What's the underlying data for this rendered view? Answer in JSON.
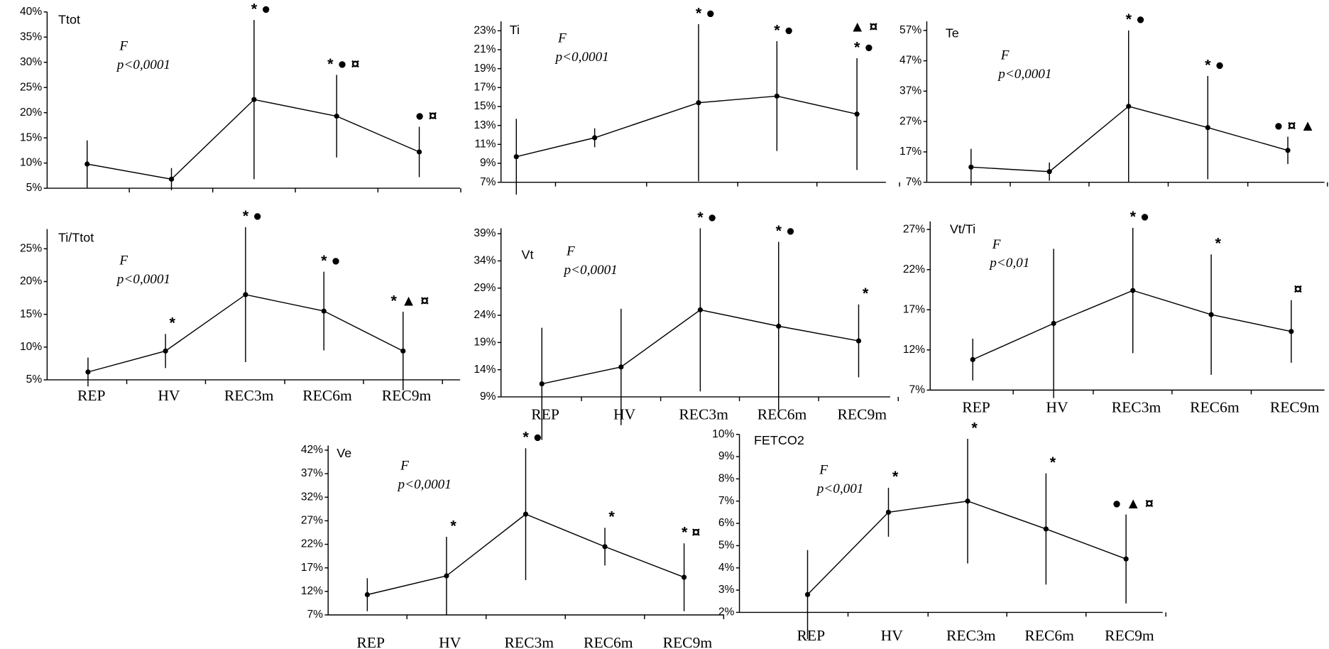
{
  "chart_data": [
    {
      "type": "line",
      "title": "Ttot",
      "stat_label": "F",
      "stat_p": "p<0,0001",
      "color": "#000000",
      "values": [
        9.8,
        6.8,
        22.6,
        19.3,
        12.2
      ],
      "errors": [
        4.7,
        2.2,
        15.8,
        8.2,
        5.0
      ],
      "annotations": [
        {
          "index": 2,
          "text": "* ●"
        },
        {
          "index": 3,
          "text": "* ● ¤"
        },
        {
          "index": 4,
          "text": "● ¤"
        }
      ],
      "ylim": [
        5,
        40
      ],
      "yticks": [
        {
          "value": 5,
          "label": "5%"
        },
        {
          "value": 10,
          "label": "10%"
        },
        {
          "value": 15,
          "label": "15%"
        },
        {
          "value": 20,
          "label": "20%"
        },
        {
          "value": 25,
          "label": "25%"
        },
        {
          "value": 30,
          "label": "30%"
        },
        {
          "value": 35,
          "label": "35%"
        },
        {
          "value": 40,
          "label": "40%"
        }
      ]
    },
    {
      "type": "line",
      "title": "Ti",
      "stat_label": "F",
      "stat_p": "p<0,0001",
      "color": "#000000",
      "values": [
        9.7,
        11.7,
        15.4,
        16.1,
        14.2
      ],
      "errors": [
        4.0,
        1.0,
        8.3,
        5.8,
        5.9
      ],
      "annotations": [
        {
          "index": 2,
          "text": "* ●"
        },
        {
          "index": 3,
          "text": "* ●"
        },
        {
          "index": 4,
          "text": "▲ ¤"
        },
        {
          "index": 4,
          "text": "* ●"
        }
      ],
      "ylim": [
        7,
        24
      ],
      "yticks": [
        {
          "value": 7,
          "label": "7%"
        },
        {
          "value": 9,
          "label": "9%"
        },
        {
          "value": 11,
          "label": "11%"
        },
        {
          "value": 13,
          "label": "13%"
        },
        {
          "value": 15,
          "label": "15%"
        },
        {
          "value": 17,
          "label": "17%"
        },
        {
          "value": 19,
          "label": "19%"
        },
        {
          "value": 21,
          "label": "21%"
        },
        {
          "value": 23,
          "label": "23%"
        }
      ]
    },
    {
      "type": "line",
      "title": "Te",
      "stat_label": "F",
      "stat_p": "p<0,0001",
      "color": "#000000",
      "values": [
        12,
        10.5,
        32,
        25,
        17.5
      ],
      "errors": [
        6,
        3,
        25,
        17,
        4.5
      ],
      "annotations": [
        {
          "index": 2,
          "text": "* ●"
        },
        {
          "index": 3,
          "text": "* ●"
        },
        {
          "index": 4,
          "text": "● ¤ ▲"
        }
      ],
      "ylim": [
        7,
        60
      ],
      "yticks": [
        {
          "value": 7,
          "label": "7%"
        },
        {
          "value": 17,
          "label": "17%"
        },
        {
          "value": 27,
          "label": "27%"
        },
        {
          "value": 37,
          "label": "37%"
        },
        {
          "value": 47,
          "label": "47%"
        },
        {
          "value": 57,
          "label": "57%"
        }
      ]
    },
    {
      "type": "line",
      "title": "Ti/Ttot",
      "stat_label": "F",
      "stat_p": "p<0,0001",
      "color": "#000000",
      "categories": [
        "REP",
        "HV",
        "REC3m",
        "REC6m",
        "REC9m"
      ],
      "values": [
        6.2,
        9.4,
        18,
        15.5,
        9.4
      ],
      "errors": [
        2.2,
        2.6,
        10.3,
        6,
        6
      ],
      "annotations": [
        {
          "index": 1,
          "text": "*"
        },
        {
          "index": 2,
          "text": "* ●"
        },
        {
          "index": 3,
          "text": "* ●"
        },
        {
          "index": 4,
          "text": "* ▲ ¤"
        }
      ],
      "ylim": [
        5,
        28
      ],
      "yticks": [
        {
          "value": 5,
          "label": "5%"
        },
        {
          "value": 10,
          "label": "10%"
        },
        {
          "value": 15,
          "label": "15%"
        },
        {
          "value": 20,
          "label": "20%"
        },
        {
          "value": 25,
          "label": "25%"
        }
      ]
    },
    {
      "type": "line",
      "title": "Vt",
      "stat_label": "F",
      "stat_p": "p<0,0001",
      "color": "#000000",
      "categories": [
        "REP",
        "HV",
        "REC3m",
        "REC6m",
        "REC9m"
      ],
      "values": [
        11.4,
        14.5,
        25,
        22,
        19.3
      ],
      "errors": [
        10.3,
        10.7,
        15,
        15.5,
        6.7
      ],
      "annotations": [
        {
          "index": 2,
          "text": "* ●"
        },
        {
          "index": 3,
          "text": "* ●"
        },
        {
          "index": 4,
          "text": "*"
        }
      ],
      "ylim": [
        9,
        40
      ],
      "yticks": [
        {
          "value": 9,
          "label": "9%"
        },
        {
          "value": 14,
          "label": "14%"
        },
        {
          "value": 19,
          "label": "19%"
        },
        {
          "value": 24,
          "label": "24%"
        },
        {
          "value": 29,
          "label": "29%"
        },
        {
          "value": 34,
          "label": "34%"
        },
        {
          "value": 39,
          "label": "39%"
        }
      ]
    },
    {
      "type": "line",
      "title": "Vt/Ti",
      "stat_label": "F",
      "stat_p": "p<0,01",
      "color": "#000000",
      "categories": [
        "REP",
        "HV",
        "REC3m",
        "REC6m",
        "REC9m"
      ],
      "values": [
        10.8,
        15.3,
        19.4,
        16.4,
        14.3
      ],
      "errors": [
        2.6,
        9.3,
        7.8,
        7.5,
        3.9
      ],
      "annotations": [
        {
          "index": 2,
          "text": "* ●"
        },
        {
          "index": 3,
          "text": "*"
        },
        {
          "index": 4,
          "text": "¤"
        }
      ],
      "ylim": [
        7,
        28
      ],
      "yticks": [
        {
          "value": 7,
          "label": "7%"
        },
        {
          "value": 12,
          "label": "12%"
        },
        {
          "value": 17,
          "label": "17%"
        },
        {
          "value": 22,
          "label": "22%"
        },
        {
          "value": 27,
          "label": "27%"
        }
      ]
    },
    {
      "type": "line",
      "title": "Ve",
      "stat_label": "F",
      "stat_p": "p<0,0001",
      "color": "#000000",
      "categories": [
        "REP",
        "HV",
        "REC3m",
        "REC6m",
        "REC9m"
      ],
      "values": [
        11.3,
        15.3,
        28.4,
        21.5,
        15
      ],
      "errors": [
        3.5,
        8.3,
        14,
        4,
        7.2
      ],
      "annotations": [
        {
          "index": 1,
          "text": "*"
        },
        {
          "index": 2,
          "text": "* ●"
        },
        {
          "index": 3,
          "text": "*"
        },
        {
          "index": 4,
          "text": "* ¤"
        }
      ],
      "ylim": [
        7,
        43
      ],
      "yticks": [
        {
          "value": 7,
          "label": "7%"
        },
        {
          "value": 12,
          "label": "12%"
        },
        {
          "value": 17,
          "label": "17%"
        },
        {
          "value": 22,
          "label": "22%"
        },
        {
          "value": 27,
          "label": "27%"
        },
        {
          "value": 32,
          "label": "32%"
        },
        {
          "value": 37,
          "label": "37%"
        },
        {
          "value": 42,
          "label": "42%"
        }
      ]
    },
    {
      "type": "line",
      "title": "FETCO2",
      "stat_label": "F",
      "stat_p": "p<0,001",
      "color": "#000000",
      "categories": [
        "REP",
        "HV",
        "REC3m",
        "REC6m",
        "REC9m"
      ],
      "values": [
        2.8,
        6.5,
        7,
        5.75,
        4.4
      ],
      "errors": [
        2,
        1.1,
        2.8,
        2.5,
        2
      ],
      "annotations": [
        {
          "index": 1,
          "text": "*"
        },
        {
          "index": 2,
          "text": "*"
        },
        {
          "index": 3,
          "text": "*"
        },
        {
          "index": 4,
          "text": "● ▲ ¤"
        }
      ],
      "ylim": [
        2,
        10
      ],
      "yticks": [
        {
          "value": 2,
          "label": "2%"
        },
        {
          "value": 3,
          "label": "3%"
        },
        {
          "value": 4,
          "label": "4%"
        },
        {
          "value": 5,
          "label": "5%"
        },
        {
          "value": 6,
          "label": "6%"
        },
        {
          "value": 7,
          "label": "7%"
        },
        {
          "value": 8,
          "label": "8%"
        },
        {
          "value": 9,
          "label": "9%"
        },
        {
          "value": 10,
          "label": "10%"
        }
      ]
    }
  ]
}
